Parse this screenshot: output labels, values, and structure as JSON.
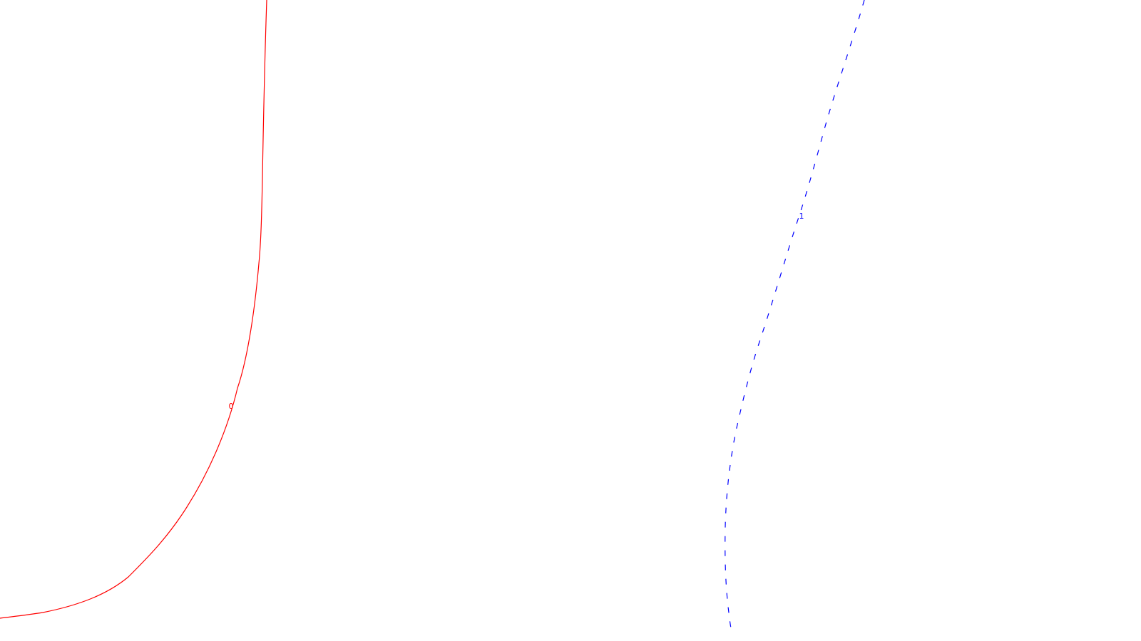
{
  "curves": [
    {
      "label": "0",
      "color": "#ff0000",
      "style": "solid"
    },
    {
      "label": "1",
      "color": "#0000ff",
      "style": "dashed"
    }
  ]
}
